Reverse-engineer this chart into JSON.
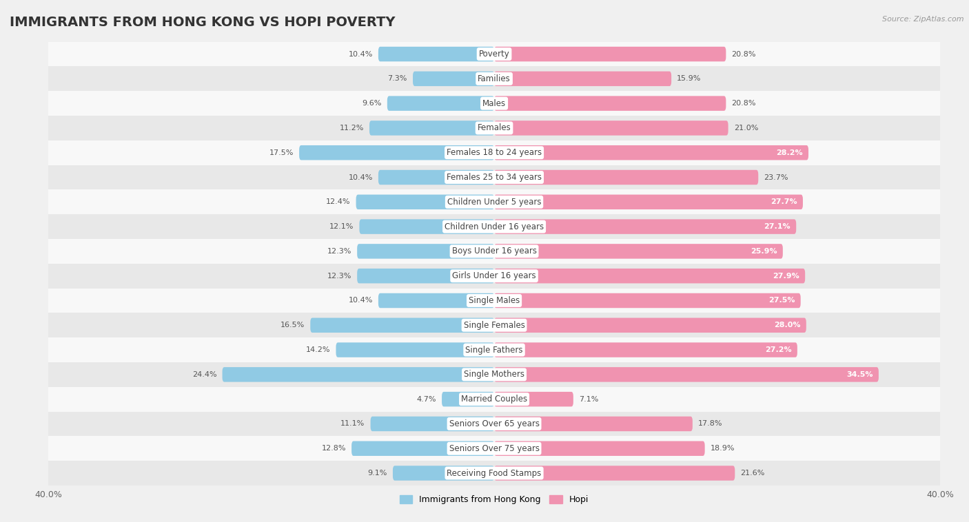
{
  "title": "IMMIGRANTS FROM HONG KONG VS HOPI POVERTY",
  "source": "Source: ZipAtlas.com",
  "categories": [
    "Poverty",
    "Families",
    "Males",
    "Females",
    "Females 18 to 24 years",
    "Females 25 to 34 years",
    "Children Under 5 years",
    "Children Under 16 years",
    "Boys Under 16 years",
    "Girls Under 16 years",
    "Single Males",
    "Single Females",
    "Single Fathers",
    "Single Mothers",
    "Married Couples",
    "Seniors Over 65 years",
    "Seniors Over 75 years",
    "Receiving Food Stamps"
  ],
  "hong_kong_values": [
    10.4,
    7.3,
    9.6,
    11.2,
    17.5,
    10.4,
    12.4,
    12.1,
    12.3,
    12.3,
    10.4,
    16.5,
    14.2,
    24.4,
    4.7,
    11.1,
    12.8,
    9.1
  ],
  "hopi_values": [
    20.8,
    15.9,
    20.8,
    21.0,
    28.2,
    23.7,
    27.7,
    27.1,
    25.9,
    27.9,
    27.5,
    28.0,
    27.2,
    34.5,
    7.1,
    17.8,
    18.9,
    21.6
  ],
  "hong_kong_color": "#90cae4",
  "hopi_color": "#f093b0",
  "hong_kong_label": "Immigrants from Hong Kong",
  "hopi_label": "Hopi",
  "background_color": "#f0f0f0",
  "row_bg_light": "#f8f8f8",
  "row_bg_dark": "#e8e8e8",
  "title_fontsize": 14,
  "label_fontsize": 8.5,
  "value_fontsize": 8.0
}
